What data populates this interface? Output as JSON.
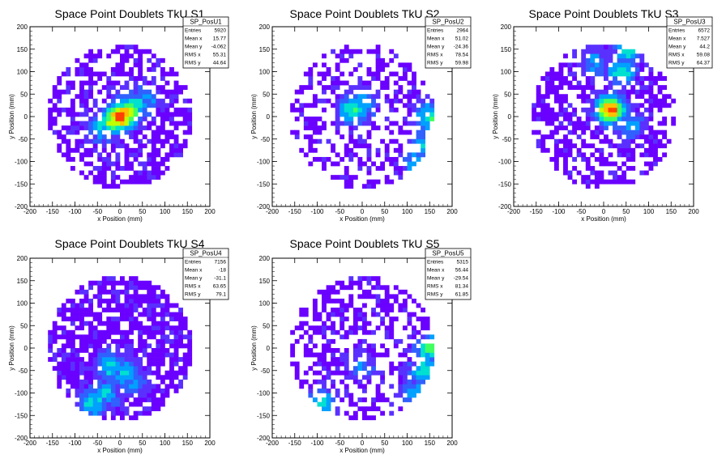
{
  "chart_data": [
    {
      "type": "heatmap",
      "title": "Space Point Doublets TkU S1",
      "xlabel": "x Position (mm)",
      "ylabel": "y Position (mm)",
      "xlim": [
        -200,
        200
      ],
      "ylim": [
        -200,
        200
      ],
      "xticks": [
        -200,
        -150,
        -100,
        -50,
        0,
        50,
        100,
        150,
        200
      ],
      "yticks": [
        -200,
        -150,
        -100,
        -50,
        0,
        50,
        100,
        150,
        200
      ],
      "stats": {
        "name": "SP_PosU1",
        "rows": [
          {
            "label": "Entries",
            "value": "5920"
          },
          {
            "label": "Mean x",
            "value": "15.77"
          },
          {
            "label": "Mean y",
            "value": "-4.062"
          },
          {
            "label": "RMS x",
            "value": "55.31"
          },
          {
            "label": "RMS y",
            "value": "44.64"
          }
        ]
      },
      "hotspots": [
        {
          "x": 0,
          "y": 0,
          "w": 1.0
        },
        {
          "x": 15,
          "y": 10,
          "w": 0.85
        },
        {
          "x": -15,
          "y": -10,
          "w": 0.75
        },
        {
          "x": 35,
          "y": 25,
          "w": 0.55
        },
        {
          "x": -40,
          "y": -25,
          "w": 0.45
        },
        {
          "x": 60,
          "y": 40,
          "w": 0.35
        }
      ],
      "density": 0.55
    },
    {
      "type": "heatmap",
      "title": "Space Point Doublets TkU S2",
      "xlabel": "x Position (mm)",
      "ylabel": "y Position (mm)",
      "xlim": [
        -200,
        200
      ],
      "ylim": [
        -200,
        200
      ],
      "xticks": [
        -200,
        -150,
        -100,
        -50,
        0,
        50,
        100,
        150,
        200
      ],
      "yticks": [
        -200,
        -150,
        -100,
        -50,
        0,
        50,
        100,
        150,
        200
      ],
      "stats": {
        "name": "SP_PosU2",
        "rows": [
          {
            "label": "Entries",
            "value": "2964"
          },
          {
            "label": "Mean x",
            "value": "51.02"
          },
          {
            "label": "Mean y",
            "value": "-24.36"
          },
          {
            "label": "RMS x",
            "value": "78.54"
          },
          {
            "label": "RMS y",
            "value": "59.98"
          }
        ]
      },
      "hotspots": [
        {
          "x": -20,
          "y": 15,
          "w": 0.55
        },
        {
          "x": 0,
          "y": 30,
          "w": 0.45
        },
        {
          "x": 150,
          "y": 0,
          "w": 0.55
        },
        {
          "x": 140,
          "y": -60,
          "w": 0.45
        },
        {
          "x": 120,
          "y": -100,
          "w": 0.4
        }
      ],
      "density": 0.42
    },
    {
      "type": "heatmap",
      "title": "Space Point Doublets TkU S3",
      "xlabel": "x Position (mm)",
      "ylabel": "y Position (mm)",
      "xlim": [
        -200,
        200
      ],
      "ylim": [
        -200,
        200
      ],
      "xticks": [
        -200,
        -150,
        -100,
        -50,
        0,
        50,
        100,
        150,
        200
      ],
      "yticks": [
        -200,
        -150,
        -100,
        -50,
        0,
        50,
        100,
        150,
        200
      ],
      "stats": {
        "name": "SP_PosU3",
        "rows": [
          {
            "label": "Entries",
            "value": "6572"
          },
          {
            "label": "Mean x",
            "value": "7.527"
          },
          {
            "label": "Mean y",
            "value": "44.2"
          },
          {
            "label": "RMS x",
            "value": "59.08"
          },
          {
            "label": "RMS y",
            "value": "64.37"
          }
        ]
      },
      "hotspots": [
        {
          "x": 15,
          "y": 15,
          "w": 1.0
        },
        {
          "x": 40,
          "y": 100,
          "w": 0.5
        },
        {
          "x": 55,
          "y": 150,
          "w": 0.5
        },
        {
          "x": -20,
          "y": 120,
          "w": 0.35
        },
        {
          "x": 60,
          "y": -20,
          "w": 0.35
        }
      ],
      "density": 0.6
    },
    {
      "type": "heatmap",
      "title": "Space Point Doublets TkU S4",
      "xlabel": "x Position (mm)",
      "ylabel": "y Position (mm)",
      "xlim": [
        -200,
        200
      ],
      "ylim": [
        -200,
        200
      ],
      "xticks": [
        -200,
        -150,
        -100,
        -50,
        0,
        50,
        100,
        150,
        200
      ],
      "yticks": [
        -200,
        -150,
        -100,
        -50,
        0,
        50,
        100,
        150,
        200
      ],
      "stats": {
        "name": "SP_PosU4",
        "rows": [
          {
            "label": "Entries",
            "value": "7156"
          },
          {
            "label": "Mean x",
            "value": "-18"
          },
          {
            "label": "Mean y",
            "value": "-31.1"
          },
          {
            "label": "RMS x",
            "value": "63.65"
          },
          {
            "label": "RMS y",
            "value": "79.1"
          }
        ]
      },
      "hotspots": [
        {
          "x": -20,
          "y": -40,
          "w": 0.5
        },
        {
          "x": 10,
          "y": -55,
          "w": 0.45
        },
        {
          "x": -60,
          "y": -120,
          "w": 0.5
        },
        {
          "x": -30,
          "y": -100,
          "w": 0.45
        },
        {
          "x": 30,
          "y": -70,
          "w": 0.35
        }
      ],
      "density": 0.75
    },
    {
      "type": "heatmap",
      "title": "Space Point Doublets TkU S5",
      "xlabel": "x Position (mm)",
      "ylabel": "y Position (mm)",
      "xlim": [
        -200,
        200
      ],
      "ylim": [
        -200,
        200
      ],
      "xticks": [
        -200,
        -150,
        -100,
        -50,
        0,
        50,
        100,
        150,
        200
      ],
      "yticks": [
        -200,
        -150,
        -100,
        -50,
        0,
        50,
        100,
        150,
        200
      ],
      "stats": {
        "name": "SP_PosU5",
        "rows": [
          {
            "label": "Entries",
            "value": "5315"
          },
          {
            "label": "Mean x",
            "value": "56.44"
          },
          {
            "label": "Mean y",
            "value": "-29.54"
          },
          {
            "label": "RMS x",
            "value": "81.34"
          },
          {
            "label": "RMS y",
            "value": "61.85"
          }
        ]
      },
      "hotspots": [
        {
          "x": 150,
          "y": 0,
          "w": 0.6
        },
        {
          "x": 140,
          "y": -50,
          "w": 0.5
        },
        {
          "x": 120,
          "y": -100,
          "w": 0.45
        },
        {
          "x": -90,
          "y": -120,
          "w": 0.45
        },
        {
          "x": 0,
          "y": -40,
          "w": 0.3
        }
      ],
      "density": 0.5
    }
  ],
  "colors": {
    "palette": [
      "#6a00ff",
      "#5a30ff",
      "#3060ff",
      "#00a0ff",
      "#00e0d0",
      "#40ff60",
      "#c0ff00",
      "#ffc000",
      "#ff4000"
    ]
  }
}
